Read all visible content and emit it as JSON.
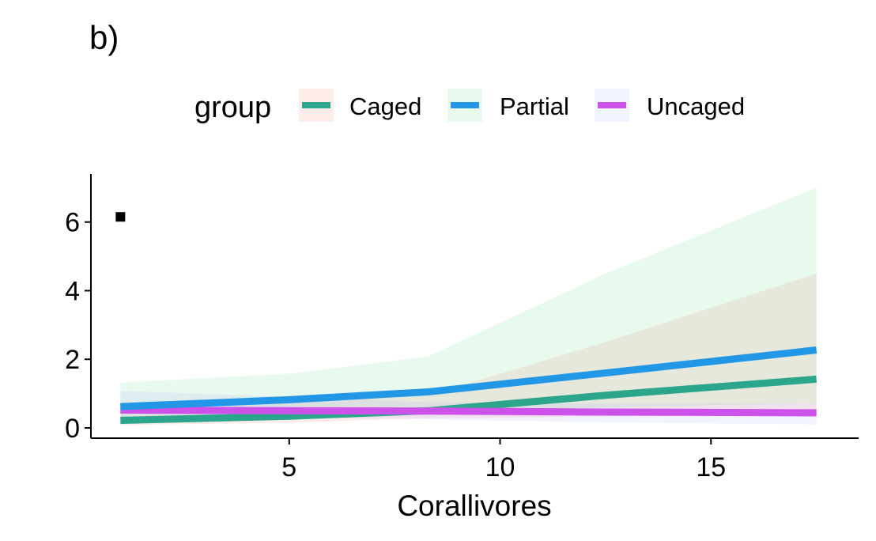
{
  "panel_tag": "b)",
  "chart_data": {
    "type": "line",
    "title": "",
    "xlabel": "Corallivores",
    "ylabel": "",
    "xlim": [
      0.3,
      18.5
    ],
    "ylim": [
      -0.3,
      7.4
    ],
    "x_ticks": [
      5,
      10,
      15
    ],
    "x_tick_labels": [
      "5",
      "10",
      "15"
    ],
    "y_ticks": [
      0,
      2,
      4,
      6
    ],
    "y_tick_labels": [
      "0",
      "2",
      "4",
      "6"
    ],
    "grid": false,
    "legend": {
      "title": "group",
      "position": "top"
    },
    "x": [
      1,
      5,
      8.3,
      12.5,
      17.5
    ],
    "series": [
      {
        "name": "Caged",
        "color": "#2ca58d",
        "fill": "#f8766d",
        "values": [
          0.22,
          0.34,
          0.5,
          0.95,
          1.42
        ],
        "lower": [
          0.08,
          0.15,
          0.28,
          0.33,
          0.38
        ],
        "upper": [
          0.6,
          0.75,
          0.95,
          2.5,
          4.5
        ]
      },
      {
        "name": "Partial",
        "color": "#2297e6",
        "fill": "#5ad18a",
        "values": [
          0.62,
          0.82,
          1.05,
          1.6,
          2.27
        ],
        "lower": [
          0.22,
          0.32,
          0.45,
          0.6,
          0.72
        ],
        "upper": [
          1.32,
          1.58,
          2.08,
          4.5,
          7.0
        ]
      },
      {
        "name": "Uncaged",
        "color": "#cd52ea",
        "fill": "#9fa8ff",
        "values": [
          0.52,
          0.5,
          0.49,
          0.46,
          0.44
        ],
        "lower": [
          0.3,
          0.3,
          0.25,
          0.16,
          0.1
        ],
        "upper": [
          1.08,
          0.9,
          0.75,
          0.7,
          0.72
        ]
      }
    ],
    "annotations": [
      {
        "type": "point-marker",
        "x": 1,
        "y": 6.15
      }
    ]
  }
}
